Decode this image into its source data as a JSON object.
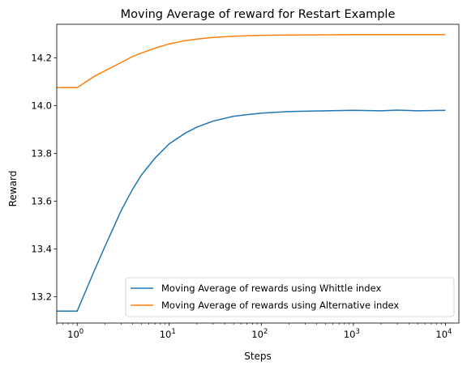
{
  "chart_data": {
    "type": "line",
    "title": "Moving Average of reward for Restart Example",
    "xlabel": "Steps",
    "ylabel": "Reward",
    "xscale": "log",
    "xlim": [
      0.6,
      14000
    ],
    "ylim": [
      13.09,
      14.34
    ],
    "x_ticks": [
      {
        "value": 1,
        "base": "10",
        "exp": "0"
      },
      {
        "value": 10,
        "base": "10",
        "exp": "1"
      },
      {
        "value": 100,
        "base": "10",
        "exp": "2"
      },
      {
        "value": 1000,
        "base": "10",
        "exp": "3"
      },
      {
        "value": 10000,
        "base": "10",
        "exp": "4"
      }
    ],
    "y_ticks": [
      "13.2",
      "13.4",
      "13.6",
      "13.8",
      "14.0",
      "14.2"
    ],
    "legend_position": "lower-right",
    "grid": false,
    "series": [
      {
        "name": "Moving Average of rewards using Whittle index",
        "color": "#1f77b4",
        "x": [
          0.6,
          1,
          1.5,
          2,
          3,
          4,
          5,
          7,
          10,
          15,
          20,
          30,
          50,
          70,
          100,
          200,
          500,
          1000,
          2000,
          3000,
          5000,
          10000
        ],
        "y": [
          13.14,
          13.14,
          13.3,
          13.41,
          13.56,
          13.65,
          13.71,
          13.78,
          13.84,
          13.885,
          13.91,
          13.935,
          13.955,
          13.962,
          13.968,
          13.975,
          13.978,
          13.98,
          13.978,
          13.981,
          13.978,
          13.98
        ]
      },
      {
        "name": "Moving Average of rewards using Alternative index",
        "color": "#ff7f0e",
        "x": [
          0.6,
          1,
          1.5,
          2,
          3,
          4,
          5,
          7,
          10,
          15,
          20,
          30,
          50,
          70,
          100,
          200,
          500,
          1000,
          2000,
          5000,
          10000
        ],
        "y": [
          14.075,
          14.075,
          14.12,
          14.145,
          14.18,
          14.205,
          14.22,
          14.24,
          14.258,
          14.272,
          14.278,
          14.285,
          14.29,
          14.292,
          14.294,
          14.295,
          14.296,
          14.297,
          14.297,
          14.297,
          14.297
        ]
      }
    ]
  }
}
